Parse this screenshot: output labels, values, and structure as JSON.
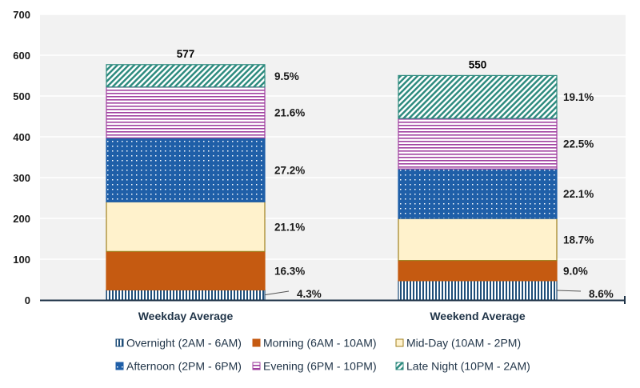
{
  "chart_data": {
    "type": "bar",
    "stacked": true,
    "categories": [
      "Weekday Average",
      "Weekend Average"
    ],
    "totals": [
      "577",
      "550"
    ],
    "ylim": [
      0,
      700
    ],
    "yticks": [
      "0",
      "100",
      "200",
      "300",
      "400",
      "500",
      "600",
      "700"
    ],
    "grid": true,
    "legend_position": "bottom",
    "series": [
      {
        "name": "Overnight (2AM - 6AM)",
        "values": [
          24.8,
          47.3
        ],
        "labels": [
          "4.3%",
          "8.6%"
        ],
        "color": "#1f4e79",
        "pattern": "vertical-lines"
      },
      {
        "name": "Morning (6AM - 10AM)",
        "values": [
          94.1,
          49.5
        ],
        "labels": [
          "16.3%",
          "9.0%"
        ],
        "color": "#c55a11",
        "pattern": "solid"
      },
      {
        "name": "Mid-Day (10AM - 2PM)",
        "values": [
          121.7,
          102.9
        ],
        "labels": [
          "21.1%",
          "18.7%"
        ],
        "color": "#fff2cc",
        "pattern": "solid-outlined"
      },
      {
        "name": "Afternoon (2PM - 6PM)",
        "values": [
          156.9,
          121.6
        ],
        "labels": [
          "27.2%",
          "22.1%"
        ],
        "color": "#1f5fa8",
        "pattern": "dots"
      },
      {
        "name": "Evening (6PM - 10PM)",
        "values": [
          124.6,
          123.8
        ],
        "labels": [
          "21.6%",
          "22.5%"
        ],
        "color": "#a040a0",
        "pattern": "horizontal-lines"
      },
      {
        "name": "Late Night (10PM - 2AM)",
        "values": [
          54.8,
          105.1
        ],
        "labels": [
          "9.5%",
          "19.1%"
        ],
        "color": "#2e8b7f",
        "pattern": "diagonal-lines"
      }
    ]
  }
}
